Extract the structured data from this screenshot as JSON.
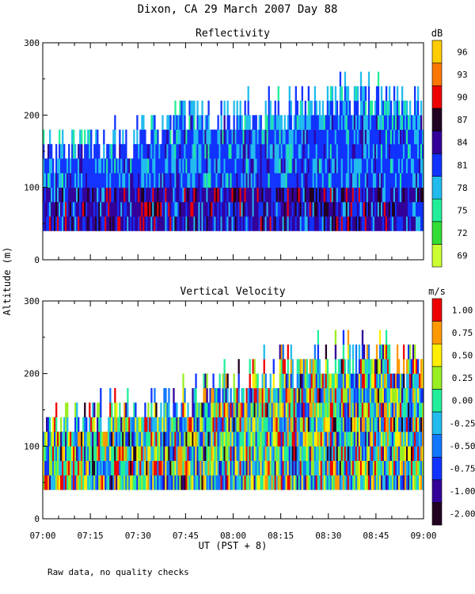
{
  "page": {
    "title": "Dixon, CA 29 March 2007  Day  88",
    "ylabel": "Altitude (m)",
    "xlabel": "UT  (PST + 8)",
    "footnote": "Raw data, no quality checks"
  },
  "chart_data": [
    {
      "type": "heatmap",
      "title": "Reflectivity",
      "x_ticks": [
        "07:00",
        "07:15",
        "07:30",
        "07:45",
        "08:00",
        "08:15",
        "08:30",
        "08:45",
        "09:00"
      ],
      "x_range": [
        "07:00",
        "09:00"
      ],
      "ylim": [
        0,
        300
      ],
      "y_ticks": [
        0,
        100,
        200,
        300
      ],
      "colorbar": {
        "unit": "dB",
        "levels": [
          69,
          72,
          75,
          78,
          81,
          84,
          87,
          90,
          93,
          96
        ],
        "colors": [
          "#ccff33",
          "#33dd33",
          "#22ee99",
          "#22bbee",
          "#1133ff",
          "#330099",
          "#220022",
          "#ee0000",
          "#ff7700",
          "#ffcc00"
        ]
      },
      "data_floor_m": 40,
      "echo_top_m": {
        "07:00": 150,
        "07:15": 160,
        "07:30": 175,
        "07:45": 200,
        "08:00": 200,
        "08:15": 210,
        "08:30": 220,
        "08:45": 230,
        "09:00": 210
      },
      "dominant_values": {
        "low_levels": 84,
        "mid_levels": 81,
        "upper_levels": 78
      }
    },
    {
      "type": "heatmap",
      "title": "Vertical Velocity",
      "x_ticks": [
        "07:00",
        "07:15",
        "07:30",
        "07:45",
        "08:00",
        "08:15",
        "08:30",
        "08:45",
        "09:00"
      ],
      "x_range": [
        "07:00",
        "09:00"
      ],
      "ylim": [
        0,
        300
      ],
      "y_ticks": [
        0,
        100,
        200,
        300
      ],
      "colorbar": {
        "unit": "m/s",
        "levels": [
          -2.0,
          -1.0,
          -0.75,
          -0.5,
          -0.25,
          0.0,
          0.25,
          0.5,
          0.75,
          1.0
        ],
        "level_labels": [
          "-2.00",
          "-1.00",
          "-0.75",
          "-0.50",
          "-0.25",
          "0.00",
          "0.25",
          "0.50",
          "0.75",
          "1.00"
        ],
        "colors": [
          "#220022",
          "#330099",
          "#1133ff",
          "#1177ff",
          "#22bbee",
          "#22ee99",
          "#99ee22",
          "#ffee00",
          "#ff9900",
          "#ee0000"
        ]
      },
      "data_floor_m": 40,
      "echo_top_m": {
        "07:00": 140,
        "07:15": 140,
        "07:30": 150,
        "07:45": 170,
        "08:00": 190,
        "08:15": 210,
        "08:30": 225,
        "08:45": 230,
        "09:00": 210
      }
    }
  ]
}
